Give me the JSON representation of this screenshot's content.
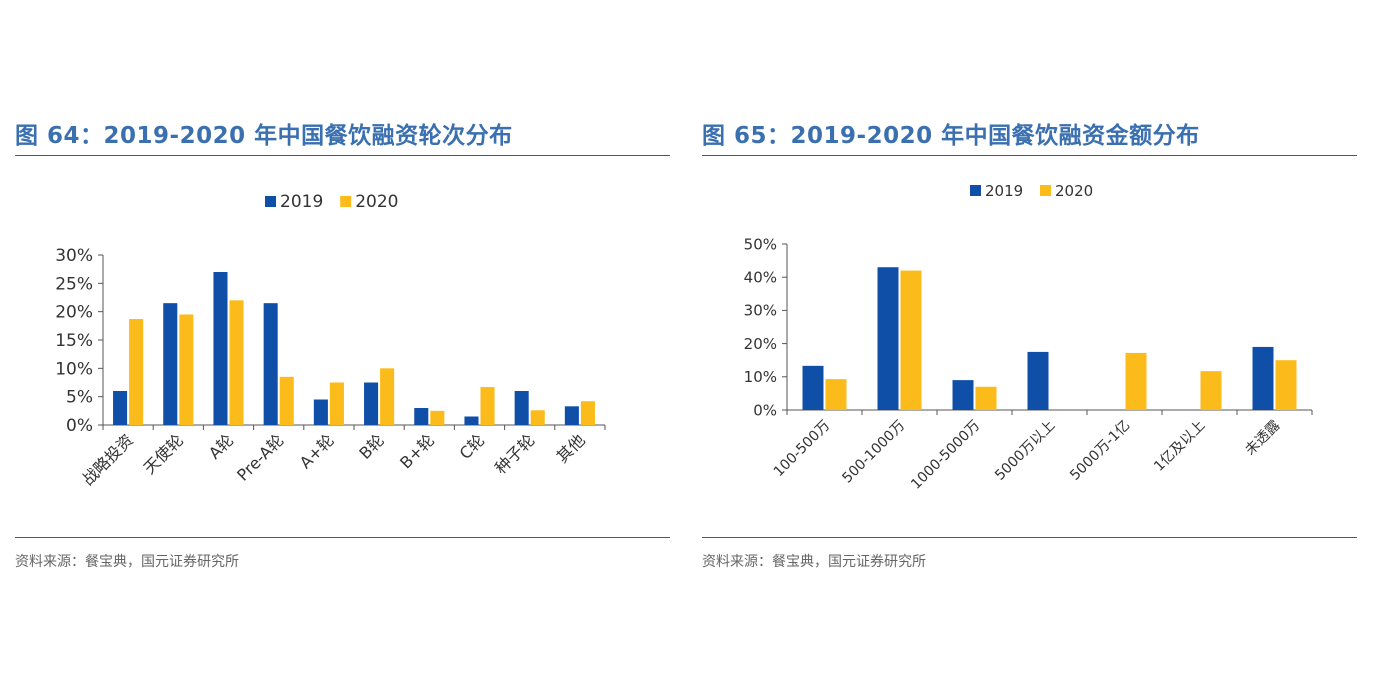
{
  "colors": {
    "series2019": "#0f4fa8",
    "series2020": "#fbbb1b",
    "title": "#3a6fb0"
  },
  "charts": [
    {
      "title": "图 64：2019-2020 年中国餐饮融资轮次分布",
      "source": "资料来源：餐宝典，国元证券研究所",
      "chart_data": {
        "type": "bar",
        "categories": [
          "战略投资",
          "天使轮",
          "A轮",
          "Pre-A轮",
          "A+轮",
          "B轮",
          "B+轮",
          "C轮",
          "种子轮",
          "其他"
        ],
        "series": [
          {
            "name": "2019",
            "values": [
              6,
              21.5,
              27,
              21.5,
              4.5,
              7.5,
              3,
              1.5,
              6,
              3.3
            ]
          },
          {
            "name": "2020",
            "values": [
              18.7,
              19.5,
              22,
              8.5,
              7.5,
              10,
              2.5,
              6.7,
              2.6,
              4.2
            ]
          }
        ],
        "yticks": [
          "0%",
          "5%",
          "10%",
          "15%",
          "20%",
          "25%",
          "30%"
        ],
        "ylim": [
          0,
          30
        ],
        "legend": "top-center"
      }
    },
    {
      "title": "图 65：2019-2020 年中国餐饮融资金额分布",
      "source": "资料来源：餐宝典，国元证券研究所",
      "chart_data": {
        "type": "bar",
        "categories": [
          "100-500万",
          "500-1000万",
          "1000-5000万",
          "5000万以上",
          "5000万-1亿",
          "1亿及以上",
          "未透露"
        ],
        "series": [
          {
            "name": "2019",
            "values": [
              13.3,
              43,
              9,
              17.5,
              0,
              0,
              19
            ]
          },
          {
            "name": "2020",
            "values": [
              9.3,
              42,
              7,
              0,
              17.2,
              11.7,
              15
            ]
          }
        ],
        "yticks": [
          "0%",
          "10%",
          "20%",
          "30%",
          "40%",
          "50%"
        ],
        "ylim": [
          0,
          50
        ],
        "legend": "top-center"
      }
    }
  ]
}
